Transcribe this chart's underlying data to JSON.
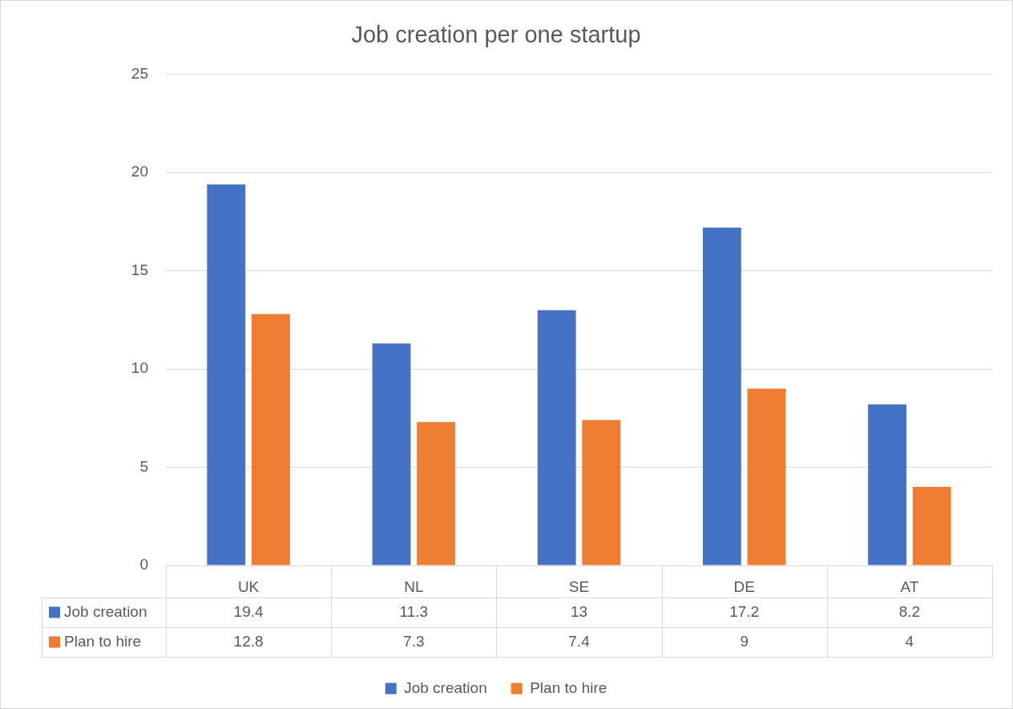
{
  "chart_data": {
    "type": "bar",
    "title": "Job creation per one startup",
    "categories": [
      "UK",
      "NL",
      "SE",
      "DE",
      "AT"
    ],
    "series": [
      {
        "name": "Job creation",
        "color": "#4472c4",
        "values": [
          19.4,
          11.3,
          13,
          17.2,
          8.2
        ]
      },
      {
        "name": "Plan to hire",
        "color": "#ed7d31",
        "values": [
          12.8,
          7.3,
          7.4,
          9,
          4
        ]
      }
    ],
    "ylim": [
      0,
      25
    ],
    "yticks": [
      0,
      5,
      10,
      15,
      20,
      25
    ],
    "grid": "y",
    "legend": "bottom",
    "data_labels": true
  }
}
